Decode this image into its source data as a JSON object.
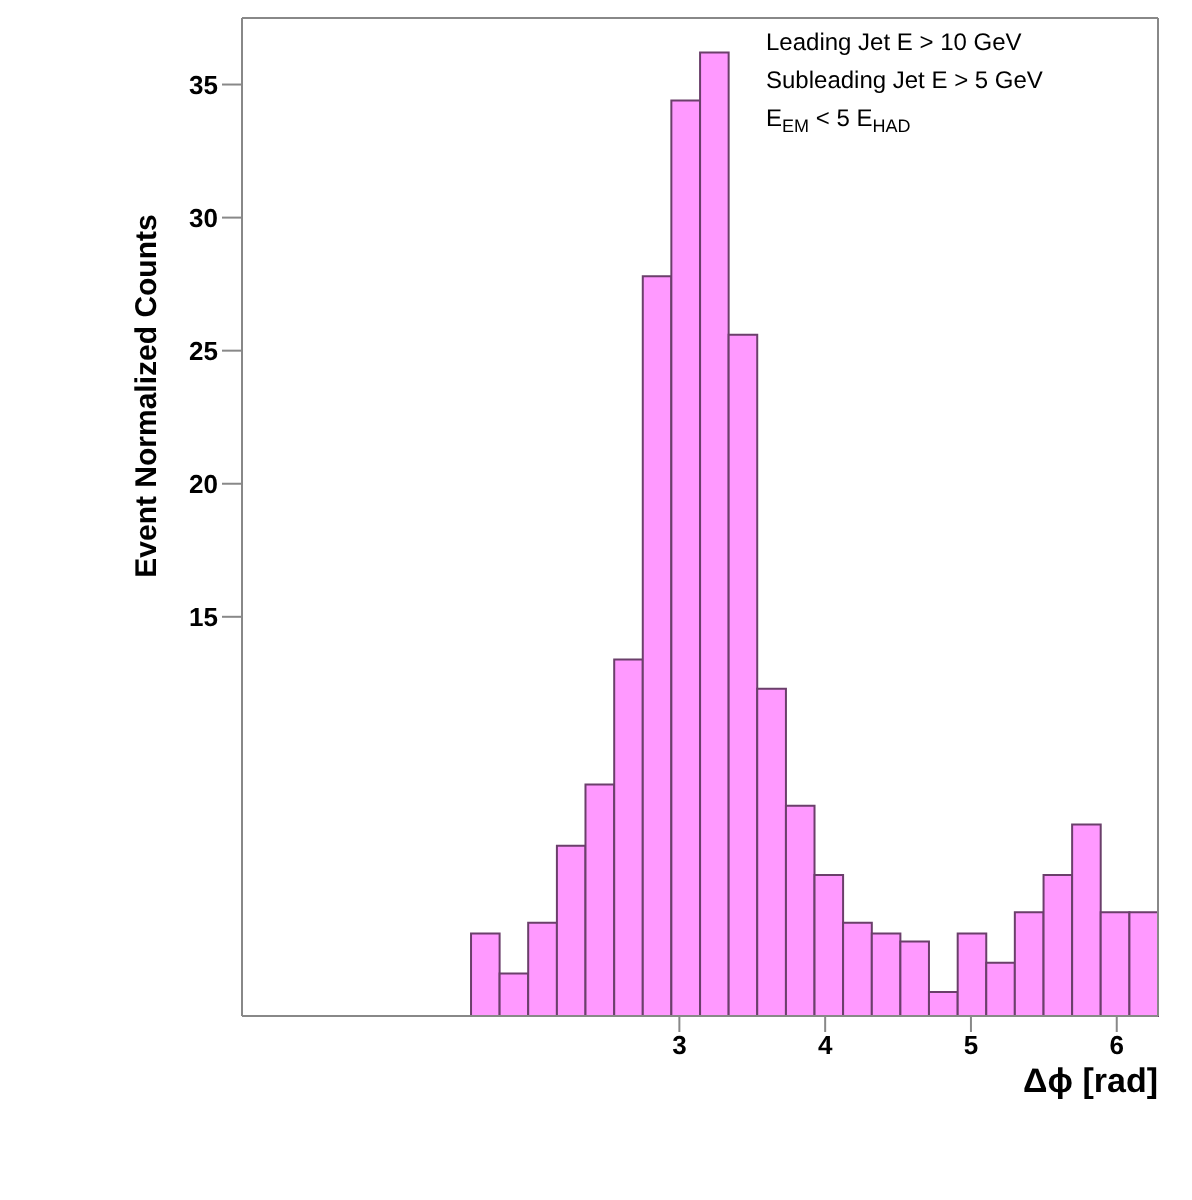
{
  "chart_data": {
    "type": "histogram",
    "xlabel": "Δϕ [rad]",
    "ylabel": "Event Normalized Counts",
    "annotations": [
      "Leading Jet E > 10 GeV",
      "Subleading Jet E > 5 GeV",
      "E$_{EM}$ < 5 E$_{HAD}$"
    ],
    "bins": [
      1.571,
      1.767,
      1.963,
      2.16,
      2.356,
      2.553,
      2.749,
      2.945,
      3.142,
      3.338,
      3.534,
      3.731,
      3.927,
      4.123,
      4.32,
      4.516,
      4.712,
      4.909,
      5.105,
      5.301,
      5.498,
      5.694,
      5.89,
      6.087,
      6.283
    ],
    "values": [
      3.1,
      1.6,
      3.5,
      6.4,
      8.7,
      13.4,
      27.8,
      34.4,
      36.2,
      25.6,
      12.3,
      7.9,
      5.3,
      3.5,
      3.1,
      2.8,
      0.9,
      3.1,
      2.0,
      3.9,
      5.3,
      7.2,
      3.9,
      3.9
    ],
    "color": "#ff99ff",
    "xlim": [
      0,
      6.283
    ],
    "xticks": [
      3,
      4,
      5,
      6
    ],
    "ylim": [
      0,
      37.5
    ],
    "yticks": [
      15,
      20,
      25,
      30,
      35
    ]
  }
}
